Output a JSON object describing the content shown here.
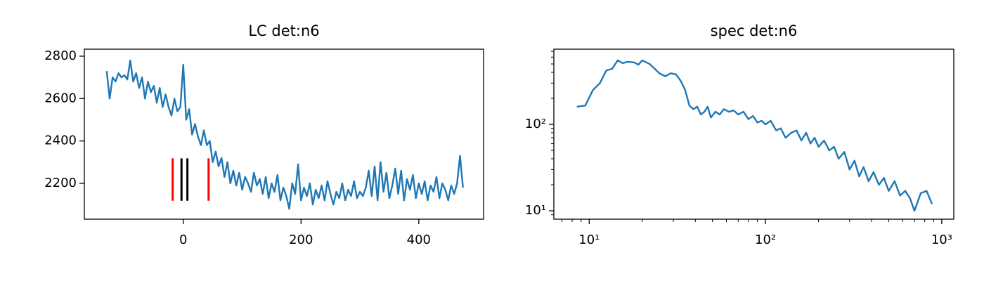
{
  "chart_data": [
    {
      "type": "line",
      "title": "LC det:n6",
      "x": [
        -130,
        -125,
        -120,
        -115,
        -110,
        -105,
        -100,
        -95,
        -90,
        -85,
        -80,
        -75,
        -70,
        -65,
        -60,
        -55,
        -50,
        -45,
        -40,
        -35,
        -30,
        -25,
        -20,
        -15,
        -10,
        -5,
        0,
        5,
        10,
        15,
        20,
        25,
        30,
        35,
        40,
        45,
        50,
        55,
        60,
        65,
        70,
        75,
        80,
        85,
        90,
        95,
        100,
        105,
        110,
        115,
        120,
        125,
        130,
        135,
        140,
        145,
        150,
        155,
        160,
        165,
        170,
        175,
        180,
        185,
        190,
        195,
        200,
        205,
        210,
        215,
        220,
        225,
        230,
        235,
        240,
        245,
        250,
        255,
        260,
        265,
        270,
        275,
        280,
        285,
        290,
        295,
        300,
        305,
        310,
        315,
        320,
        325,
        330,
        335,
        340,
        345,
        350,
        355,
        360,
        365,
        370,
        375,
        380,
        385,
        390,
        395,
        400,
        405,
        410,
        415,
        420,
        425,
        430,
        435,
        440,
        445,
        450,
        455,
        460,
        465,
        470,
        475
      ],
      "series": [
        {
          "color": "#1f77b4",
          "values": [
            2730,
            2600,
            2700,
            2680,
            2720,
            2700,
            2710,
            2690,
            2780,
            2680,
            2720,
            2650,
            2700,
            2600,
            2680,
            2630,
            2660,
            2580,
            2650,
            2560,
            2620,
            2560,
            2520,
            2600,
            2540,
            2560,
            2760,
            2500,
            2550,
            2430,
            2480,
            2420,
            2380,
            2450,
            2380,
            2400,
            2300,
            2350,
            2280,
            2320,
            2230,
            2300,
            2200,
            2260,
            2190,
            2250,
            2170,
            2230,
            2200,
            2160,
            2250,
            2190,
            2220,
            2150,
            2230,
            2130,
            2200,
            2160,
            2240,
            2120,
            2180,
            2140,
            2080,
            2200,
            2150,
            2290,
            2120,
            2180,
            2140,
            2200,
            2100,
            2170,
            2130,
            2190,
            2120,
            2210,
            2150,
            2100,
            2160,
            2130,
            2200,
            2120,
            2170,
            2140,
            2210,
            2130,
            2160,
            2140,
            2180,
            2260,
            2140,
            2280,
            2120,
            2300,
            2160,
            2250,
            2130,
            2190,
            2270,
            2150,
            2260,
            2120,
            2220,
            2170,
            2240,
            2130,
            2200,
            2150,
            2210,
            2120,
            2190,
            2160,
            2230,
            2130,
            2200,
            2170,
            2120,
            2190,
            2150,
            2200,
            2330,
            2180
          ]
        }
      ],
      "vlines": [
        {
          "x": -18,
          "ymin": 2118,
          "ymax": 2318,
          "color": "#ff0000"
        },
        {
          "x": -3,
          "ymin": 2118,
          "ymax": 2318,
          "color": "#000000"
        },
        {
          "x": 7,
          "ymin": 2118,
          "ymax": 2318,
          "color": "#000000"
        },
        {
          "x": 43,
          "ymin": 2118,
          "ymax": 2318,
          "color": "#ff0000"
        }
      ],
      "xlim": [
        -168,
        510
      ],
      "ylim": [
        2031,
        2833
      ],
      "xticks": [
        0,
        200,
        400
      ],
      "yticks": [
        2200,
        2400,
        2600,
        2800
      ]
    },
    {
      "type": "line",
      "title": "spec det:n6",
      "xscale": "log",
      "yscale": "log",
      "x": [
        8.5,
        9.5,
        10.5,
        11.5,
        12.5,
        13.5,
        14.5,
        15.5,
        16.5,
        18,
        19,
        20,
        22,
        23,
        25,
        27,
        29,
        31,
        33,
        35,
        37,
        39,
        41,
        43,
        45,
        47,
        49,
        52,
        55,
        58,
        62,
        66,
        70,
        75,
        80,
        85,
        90,
        95,
        100,
        107,
        115,
        122,
        130,
        140,
        150,
        160,
        170,
        180,
        190,
        200,
        215,
        230,
        245,
        260,
        280,
        300,
        320,
        340,
        360,
        385,
        410,
        440,
        470,
        500,
        540,
        580,
        620,
        660,
        700,
        760,
        820,
        880
      ],
      "series": [
        {
          "color": "#1f77b4",
          "values": [
            160,
            165,
            250,
            300,
            420,
            440,
            550,
            510,
            530,
            520,
            490,
            550,
            500,
            460,
            390,
            360,
            390,
            380,
            320,
            250,
            165,
            150,
            160,
            130,
            140,
            160,
            120,
            140,
            130,
            150,
            140,
            145,
            130,
            140,
            115,
            125,
            105,
            110,
            100,
            110,
            85,
            90,
            70,
            80,
            85,
            65,
            80,
            60,
            70,
            55,
            65,
            50,
            55,
            40,
            48,
            30,
            38,
            25,
            32,
            22,
            28,
            20,
            24,
            17,
            22,
            15,
            17,
            14,
            10,
            16,
            17,
            12
          ]
        }
      ],
      "xlim": [
        6.3,
        1170
      ],
      "ylim": [
        8,
        741
      ],
      "xticks": [
        {
          "value": 10,
          "label": "10¹"
        },
        {
          "value": 100,
          "label": "10²"
        },
        {
          "value": 1000,
          "label": "10³"
        }
      ],
      "yticks": [
        {
          "value": 10,
          "label": "10¹"
        },
        {
          "value": 100,
          "label": "10²"
        }
      ],
      "xminorticks": [
        7,
        8,
        9,
        20,
        30,
        40,
        50,
        60,
        70,
        80,
        90,
        200,
        300,
        400,
        500,
        600,
        700,
        800,
        900
      ],
      "yminorticks": [
        9,
        20,
        30,
        40,
        50,
        60,
        70,
        80,
        90,
        200,
        300,
        400,
        500,
        600,
        700
      ]
    }
  ]
}
